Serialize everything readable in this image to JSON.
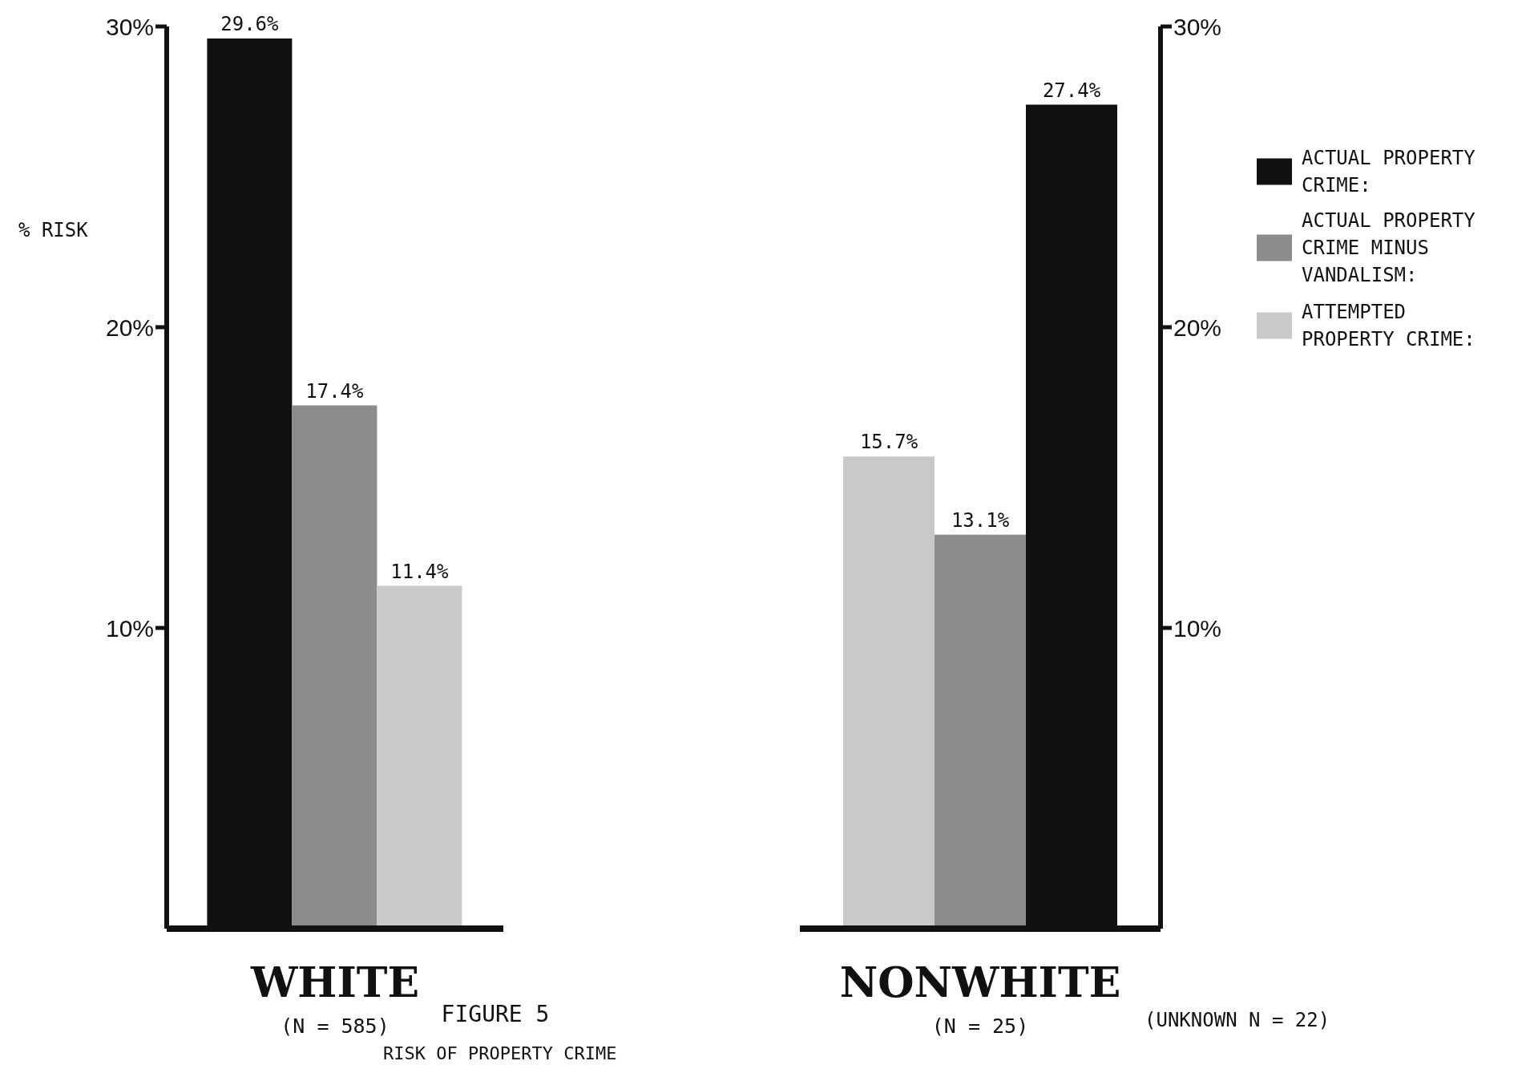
{
  "chart_data": [
    {
      "type": "bar",
      "title": "FIGURE 5",
      "subtitle": "RISK OF PROPERTY CRIME",
      "ylabel": "% RISK",
      "xlabel": "(N = 585)",
      "categories": [
        "WHITE"
      ],
      "series": [
        {
          "color": "#111111",
          "values": [
            29.6
          ],
          "value_labels": [
            "29.6%"
          ]
        },
        {
          "color": "#8c8c8c",
          "values": [
            17.4
          ],
          "value_labels": [
            "17.4%"
          ]
        },
        {
          "color": "#c9c9c9",
          "values": [
            11.4
          ],
          "value_labels": [
            "11.4%"
          ]
        }
      ],
      "ylim": [
        0,
        30
      ],
      "yticks": [
        {
          "value": 10,
          "label": "10%"
        },
        {
          "value": 20,
          "label": "20%"
        },
        {
          "value": 30,
          "label": "30%"
        }
      ],
      "legend": false
    },
    {
      "type": "bar",
      "xlabel": "(N = 25)",
      "categories": [
        "NONWHITE"
      ],
      "annotations": [
        "(UNKNOWN N = 22)"
      ],
      "series": [
        {
          "name": "ATTEMPTED PROPERTY CRIME:",
          "color": "#c9c9c9",
          "values": [
            15.7
          ],
          "value_labels": [
            "15.7%"
          ]
        },
        {
          "name": "ACTUAL PROPERTY CRIME MINUS VANDALISM:",
          "color": "#8c8c8c",
          "values": [
            13.1
          ],
          "value_labels": [
            "13.1%"
          ]
        },
        {
          "name": "ACTUAL PROPERTY CRIME:",
          "color": "#111111",
          "values": [
            27.4
          ],
          "value_labels": [
            "27.4%"
          ]
        }
      ],
      "ylim": [
        0,
        30
      ],
      "yticks": [
        {
          "value": 10,
          "label": "10%"
        },
        {
          "value": 20,
          "label": "20%"
        },
        {
          "value": 30,
          "label": "30%"
        }
      ],
      "legend": "right"
    }
  ]
}
